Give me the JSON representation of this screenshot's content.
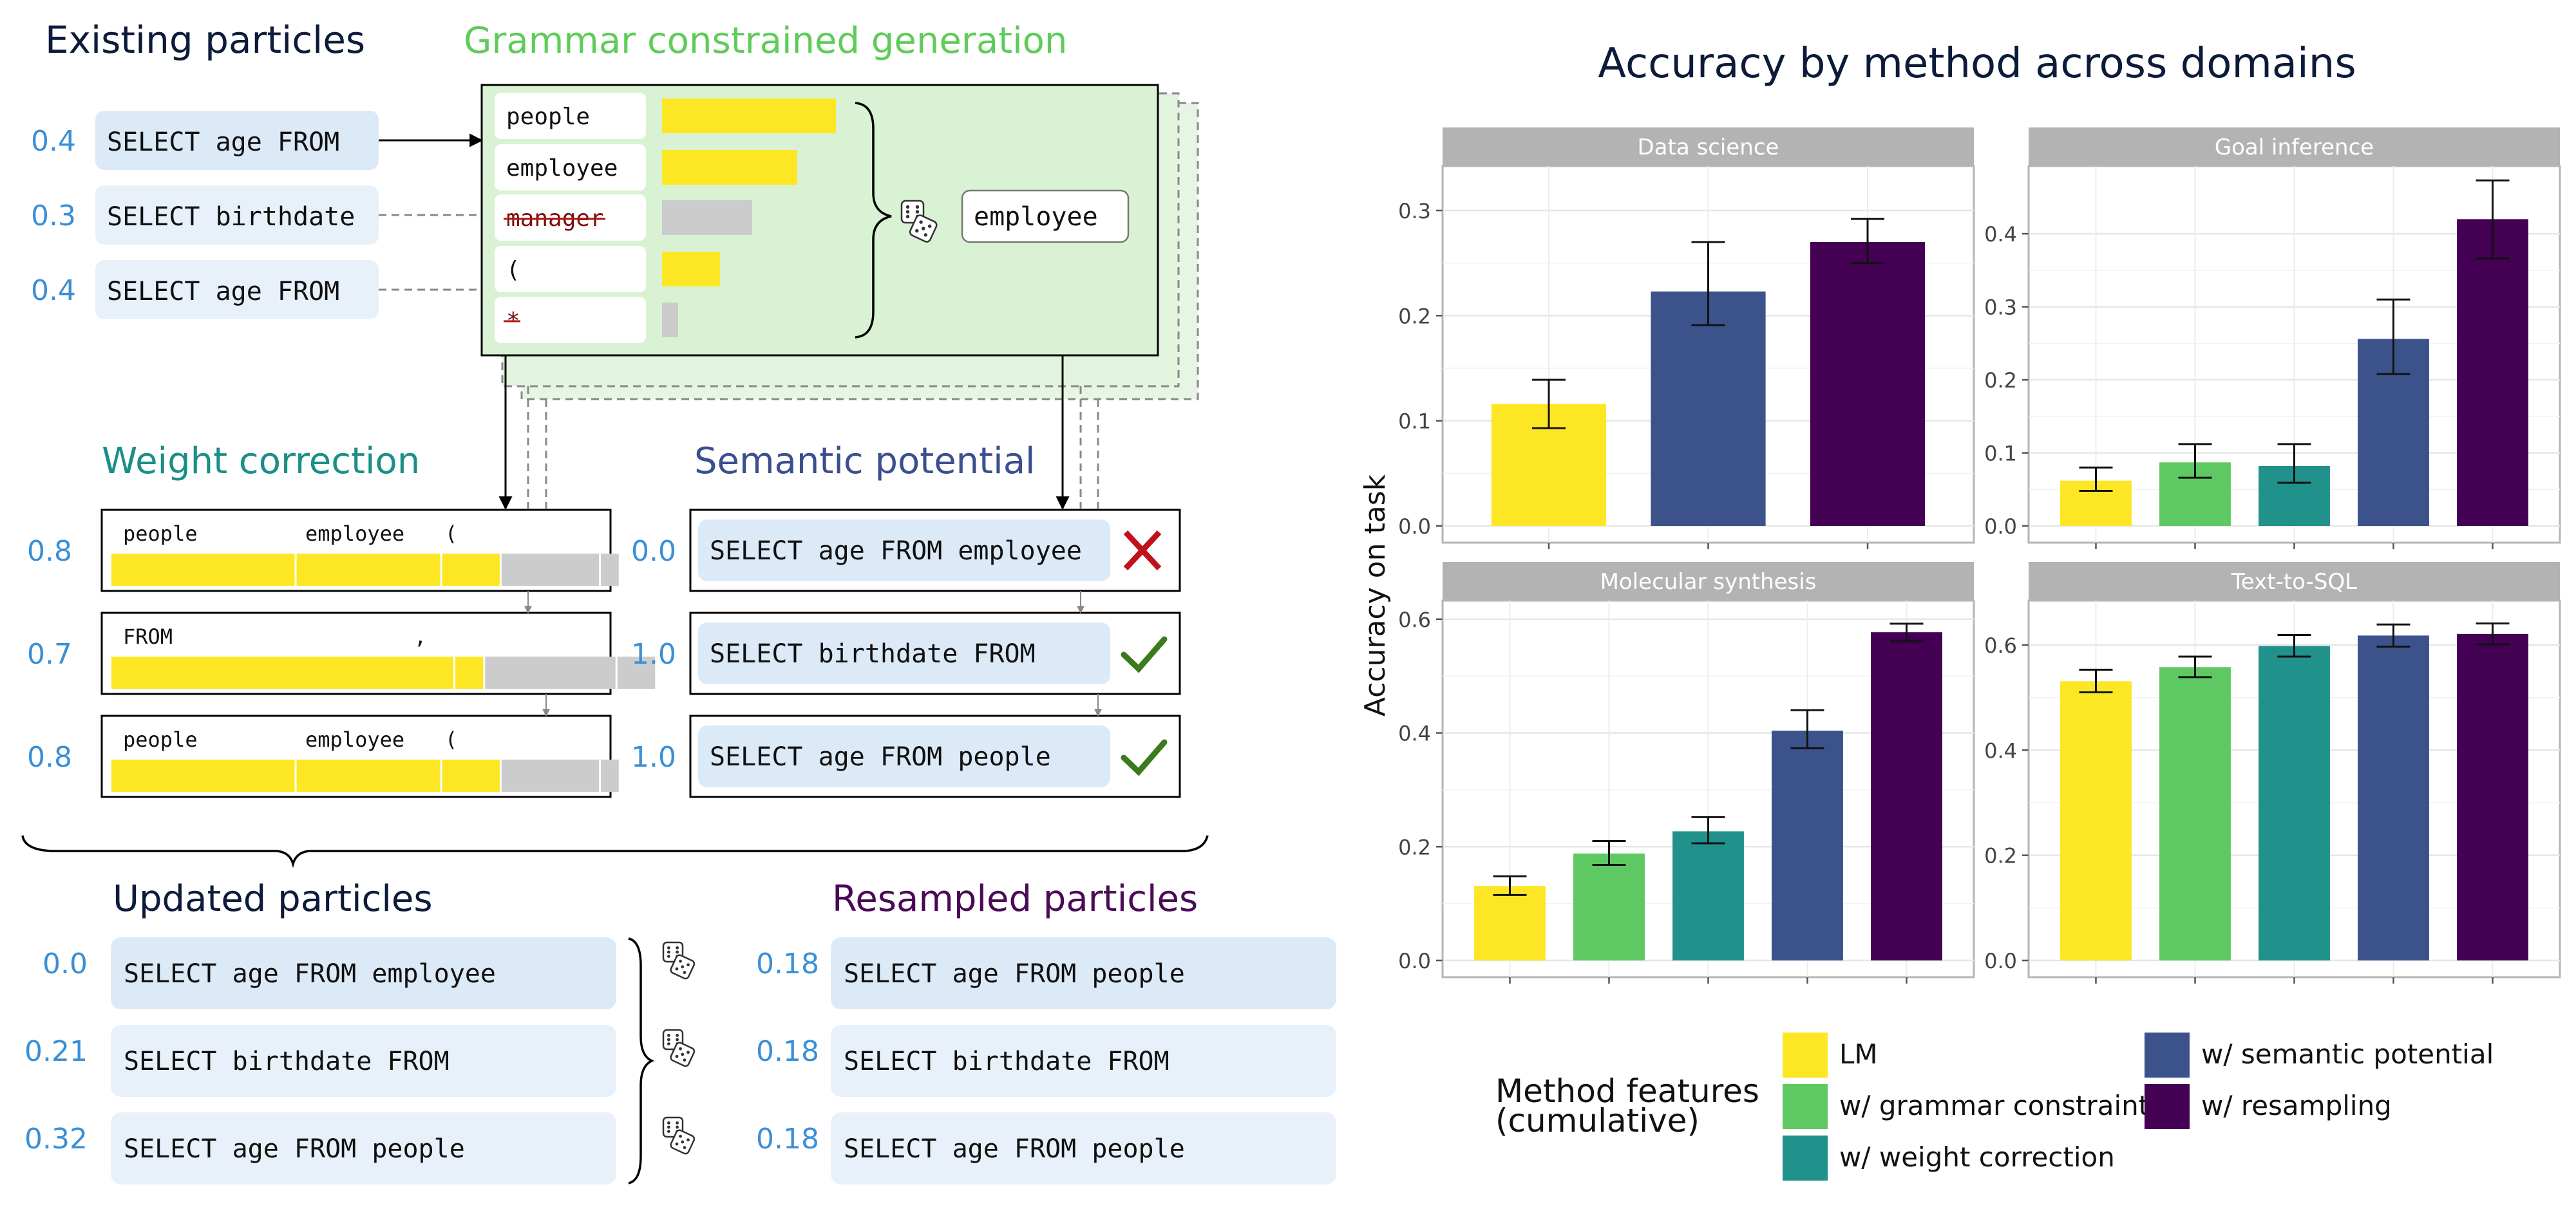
{
  "colors": {
    "lm": "#fde725",
    "grammar": "#5ec962",
    "weight": "#21918c",
    "semantic": "#3b528b",
    "resample": "#440154",
    "number_blue": "#3b8fd6",
    "particle_bg": "#dce9f6",
    "particle_bg_light": "#e8f1f9",
    "panel_green": "#d9f2d4",
    "facet_strip": "#b3b3b3",
    "check_green": "#3c7a1e",
    "cross_red": "#c0121a"
  },
  "diagram": {
    "existing": {
      "title": "Existing particles",
      "rows": [
        {
          "weight": "0.4",
          "text": "SELECT age FROM"
        },
        {
          "weight": "0.3",
          "text": "SELECT birthdate"
        },
        {
          "weight": "0.4",
          "text": "SELECT age FROM"
        }
      ]
    },
    "grammar": {
      "title": "Grammar constrained generation",
      "tokens": [
        {
          "label": "people",
          "prob": 0.27,
          "allowed": true
        },
        {
          "label": "employee",
          "prob": 0.21,
          "allowed": true
        },
        {
          "label": "manager",
          "prob": 0.14,
          "allowed": false
        },
        {
          "label": "(",
          "prob": 0.09,
          "allowed": true
        },
        {
          "label": "*",
          "prob": 0.025,
          "allowed": false
        }
      ],
      "sampled": "employee",
      "dice_icon": "dice-icon"
    },
    "weight_correction": {
      "title": "Weight correction",
      "rows": [
        {
          "weight": "0.8",
          "labels": [
            {
              "t": "people",
              "slot": 0
            },
            {
              "t": "employee",
              "slot": 1
            },
            {
              "t": "(",
              "slot": 2
            }
          ],
          "segments": [
            0.28,
            0.22,
            0.09
          ],
          "grey": [
            0.15,
            0.03
          ]
        },
        {
          "weight": "0.7",
          "labels": [
            {
              "t": "FROM",
              "slot": 0
            },
            {
              "t": ",",
              "slot": 1
            }
          ],
          "segments": [
            0.52,
            0.045
          ],
          "grey": [
            0.2,
            0.06
          ]
        },
        {
          "weight": "0.8",
          "labels": [
            {
              "t": "people",
              "slot": 0
            },
            {
              "t": "employee",
              "slot": 1
            },
            {
              "t": "(",
              "slot": 2
            }
          ],
          "segments": [
            0.28,
            0.22,
            0.09
          ],
          "grey": [
            0.15,
            0.03
          ]
        }
      ]
    },
    "semantic": {
      "title": "Semantic potential",
      "rows": [
        {
          "weight": "0.0",
          "text": "SELECT age FROM employee",
          "mark": "cross"
        },
        {
          "weight": "1.0",
          "text": "SELECT birthdate FROM",
          "mark": "check"
        },
        {
          "weight": "1.0",
          "text": "SELECT age FROM people",
          "mark": "check"
        }
      ]
    },
    "updated": {
      "title": "Updated particles",
      "rows": [
        {
          "weight": "0.0",
          "text": "SELECT age FROM employee"
        },
        {
          "weight": "0.21",
          "text": "SELECT birthdate FROM"
        },
        {
          "weight": "0.32",
          "text": "SELECT age FROM people"
        }
      ]
    },
    "resampled": {
      "title": "Resampled particles",
      "rows": [
        {
          "weight": "0.18",
          "text": "SELECT age FROM people"
        },
        {
          "weight": "0.18",
          "text": "SELECT birthdate FROM"
        },
        {
          "weight": "0.18",
          "text": "SELECT age FROM people"
        }
      ]
    }
  },
  "chart_data": {
    "type": "bar",
    "title": "Accuracy by method across domains",
    "ylabel": "Accuracy on task",
    "xlabel": "",
    "grid": true,
    "legend_title": "Method features\n(cumulative)",
    "legend_placement": "bottom",
    "legend": [
      {
        "name": "LM",
        "color": "#fde725"
      },
      {
        "name": "w/ grammar constraint",
        "color": "#5ec962"
      },
      {
        "name": "w/ weight correction",
        "color": "#21918c"
      },
      {
        "name": "w/ semantic potential",
        "color": "#3b528b"
      },
      {
        "name": "w/ resampling",
        "color": "#440154"
      }
    ],
    "facets": [
      {
        "name": "Data science",
        "ylim": [
          0,
          0.33
        ],
        "yticks": [
          0.0,
          0.1,
          0.2,
          0.3
        ],
        "ytick_labels": [
          "0.0",
          "0.1",
          "0.2",
          "0.3"
        ],
        "bars": [
          {
            "method": "LM",
            "value": 0.116,
            "err_low": 0.093,
            "err_high": 0.139
          },
          {
            "method": "w/ semantic potential",
            "value": 0.223,
            "err_low": 0.191,
            "err_high": 0.27
          },
          {
            "method": "w/ resampling",
            "value": 0.27,
            "err_low": 0.25,
            "err_high": 0.292
          }
        ]
      },
      {
        "name": "Goal inference",
        "ylim": [
          0,
          0.475
        ],
        "yticks": [
          0.0,
          0.1,
          0.2,
          0.3,
          0.4
        ],
        "ytick_labels": [
          "0.0",
          "0.1",
          "0.2",
          "0.3",
          "0.4"
        ],
        "bars": [
          {
            "method": "LM",
            "value": 0.062,
            "err_low": 0.048,
            "err_high": 0.08
          },
          {
            "method": "w/ grammar constraint",
            "value": 0.087,
            "err_low": 0.066,
            "err_high": 0.112
          },
          {
            "method": "w/ weight correction",
            "value": 0.082,
            "err_low": 0.059,
            "err_high": 0.112
          },
          {
            "method": "w/ semantic potential",
            "value": 0.256,
            "err_low": 0.208,
            "err_high": 0.31
          },
          {
            "method": "w/ resampling",
            "value": 0.42,
            "err_low": 0.366,
            "err_high": 0.473
          }
        ]
      },
      {
        "name": "Molecular synthesis",
        "ylim": [
          0,
          0.61
        ],
        "yticks": [
          0.0,
          0.2,
          0.4,
          0.6
        ],
        "ytick_labels": [
          "0.0",
          "0.2",
          "0.4",
          "0.6"
        ],
        "bars": [
          {
            "method": "LM",
            "value": 0.131,
            "err_low": 0.115,
            "err_high": 0.148
          },
          {
            "method": "w/ grammar constraint",
            "value": 0.188,
            "err_low": 0.168,
            "err_high": 0.21
          },
          {
            "method": "w/ weight correction",
            "value": 0.227,
            "err_low": 0.206,
            "err_high": 0.252
          },
          {
            "method": "w/ semantic potential",
            "value": 0.404,
            "err_low": 0.373,
            "err_high": 0.44
          },
          {
            "method": "w/ resampling",
            "value": 0.577,
            "err_low": 0.561,
            "err_high": 0.592
          }
        ]
      },
      {
        "name": "Text-to-SQL",
        "ylim": [
          0,
          0.66
        ],
        "yticks": [
          0.0,
          0.2,
          0.4,
          0.6
        ],
        "ytick_labels": [
          "0.0",
          "0.2",
          "0.4",
          "0.6"
        ],
        "bars": [
          {
            "method": "LM",
            "value": 0.531,
            "err_low": 0.51,
            "err_high": 0.553
          },
          {
            "method": "w/ grammar constraint",
            "value": 0.558,
            "err_low": 0.539,
            "err_high": 0.578
          },
          {
            "method": "w/ weight correction",
            "value": 0.598,
            "err_low": 0.578,
            "err_high": 0.619
          },
          {
            "method": "w/ semantic potential",
            "value": 0.618,
            "err_low": 0.597,
            "err_high": 0.639
          },
          {
            "method": "w/ resampling",
            "value": 0.621,
            "err_low": 0.601,
            "err_high": 0.641
          }
        ]
      }
    ]
  }
}
